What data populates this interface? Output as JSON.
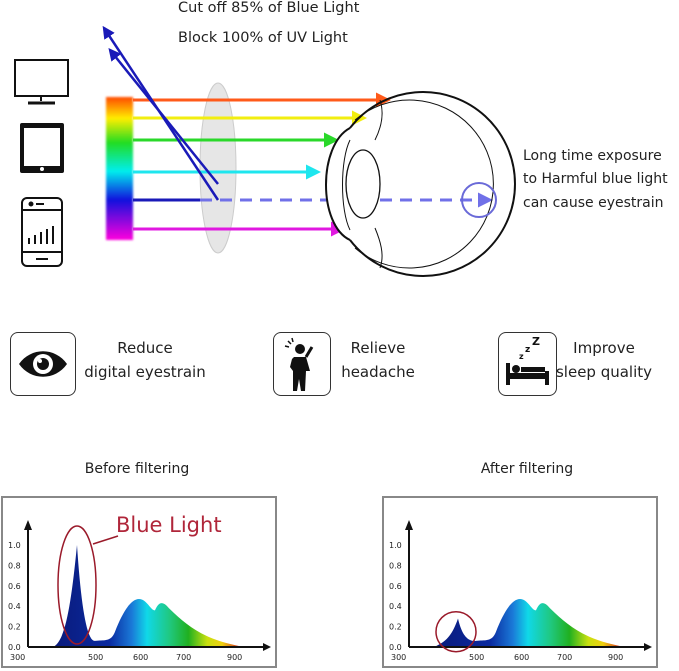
{
  "header": {
    "line1": "Cut off 85% of Blue Light",
    "line2": "Block 100% of UV Light"
  },
  "eye_note": [
    "Long time exposure",
    "to Harmful blue light",
    "can cause eyestrain"
  ],
  "benefits": [
    {
      "icon": "eye-icon",
      "line1": "Reduce",
      "line2": "digital eyestrain"
    },
    {
      "icon": "headache-person-icon",
      "line1": "Relieve",
      "line2": "headache"
    },
    {
      "icon": "sleeping-bed-icon",
      "line1": "Improve",
      "line2": "sleep quality"
    }
  ],
  "charts": {
    "before": {
      "title": "Before filtering",
      "annotation": "Blue Light",
      "blue_peak": 1.0
    },
    "after": {
      "title": "After filtering",
      "blue_peak": 0.28
    },
    "y_ticks": [
      "1.0",
      "0.8",
      "0.6",
      "0.4",
      "0.2",
      "0.0"
    ],
    "x_ticks": [
      "300",
      "500",
      "600",
      "700",
      "900"
    ]
  },
  "colors": {
    "blue_light": "#1a2fa8",
    "annotation": "#b0263a",
    "text": "#222222"
  }
}
